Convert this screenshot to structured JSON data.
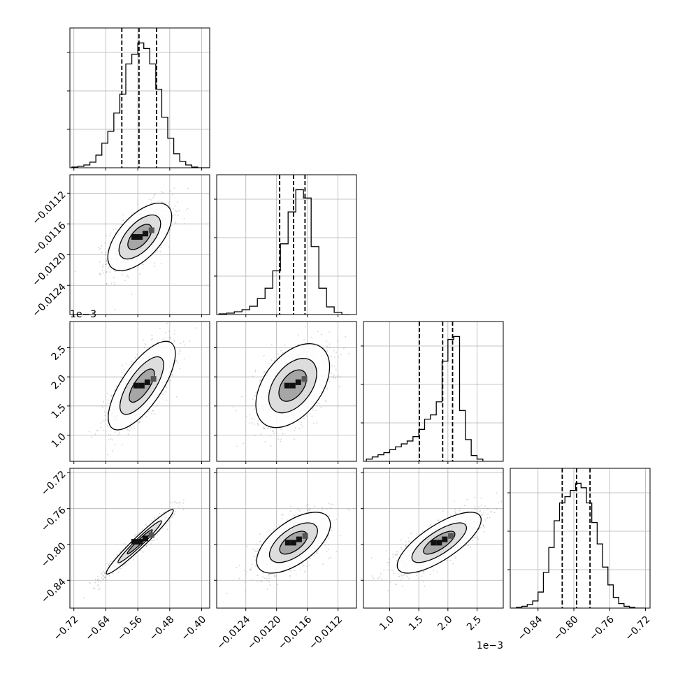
{
  "chart_data": {
    "type": "corner",
    "parameters": [
      "",
      "",
      "",
      ""
    ],
    "colors": {
      "line": "#000000",
      "grid": "#b0b0b0",
      "scatter": "#808080"
    },
    "grid": true,
    "offsets": {
      "p2": "1e−3"
    },
    "axes": {
      "p0": {
        "range": [
          -0.73,
          -0.38
        ],
        "ticks": [
          -0.72,
          -0.64,
          -0.56,
          -0.48,
          -0.4
        ],
        "tick_labels": [
          "−0.72",
          "−0.64",
          "−0.56",
          "−0.48",
          "−0.40"
        ]
      },
      "p1": {
        "range": [
          -0.01278,
          -0.01096
        ],
        "ticks": [
          -0.0124,
          -0.012,
          -0.0116,
          -0.0112
        ],
        "tick_labels": [
          "−0.0124",
          "−0.0120",
          "−0.0116",
          "−0.0112"
        ]
      },
      "p2": {
        "range": [
          0.00055,
          0.00295
        ],
        "ticks": [
          0.001,
          0.0015,
          0.002,
          0.0025
        ],
        "tick_labels": [
          "1.0",
          "1.5",
          "2.0",
          "2.5"
        ]
      },
      "p3": {
        "range": [
          -0.871,
          -0.715
        ],
        "ticks": [
          -0.84,
          -0.8,
          -0.76,
          -0.72
        ],
        "tick_labels": [
          "−0.84",
          "−0.80",
          "−0.76",
          "−0.72"
        ]
      }
    },
    "histograms": [
      {
        "param": "p0",
        "bins": [
          -0.725,
          -0.71,
          -0.695,
          -0.68,
          -0.665,
          -0.65,
          -0.635,
          -0.62,
          -0.605,
          -0.59,
          -0.575,
          -0.56,
          -0.545,
          -0.53,
          -0.515,
          -0.5,
          -0.485,
          -0.47,
          -0.455,
          -0.44,
          -0.425,
          -0.41,
          -0.395,
          -0.38
        ],
        "counts": [
          1,
          2,
          4,
          8,
          18,
          35,
          52,
          78,
          105,
          148,
          162,
          178,
          170,
          148,
          112,
          72,
          42,
          20,
          9,
          4,
          1,
          0,
          0
        ],
        "quantiles": [
          -0.6,
          -0.557,
          -0.513
        ]
      },
      {
        "param": "p1",
        "bins": [
          -0.01275,
          -0.01265,
          -0.01255,
          -0.01245,
          -0.01235,
          -0.01225,
          -0.01215,
          -0.01205,
          -0.01195,
          -0.01185,
          -0.01175,
          -0.01165,
          -0.01155,
          -0.01145,
          -0.01135,
          -0.01125,
          -0.01115,
          -0.01105
        ],
        "counts": [
          1,
          2,
          4,
          7,
          12,
          23,
          38,
          63,
          102,
          148,
          180,
          168,
          98,
          38,
          11,
          3,
          0
        ],
        "quantiles": [
          -0.01196,
          -0.01178,
          -0.01163
        ]
      },
      {
        "param": "p2",
        "bins": [
          0.0006,
          0.0007,
          0.0008,
          0.0009,
          0.001,
          0.0011,
          0.0012,
          0.0013,
          0.0014,
          0.0015,
          0.0016,
          0.0017,
          0.0018,
          0.0019,
          0.002,
          0.0021,
          0.0022,
          0.0023,
          0.0024,
          0.0025,
          0.0026
        ],
        "counts": [
          3,
          6,
          9,
          12,
          16,
          20,
          24,
          28,
          34,
          44,
          58,
          64,
          82,
          138,
          168,
          172,
          70,
          30,
          8,
          3
        ],
        "quantiles": [
          0.00151,
          0.00191,
          0.00208
        ]
      },
      {
        "param": "p3",
        "bins": [
          -0.87,
          -0.864,
          -0.858,
          -0.852,
          -0.846,
          -0.84,
          -0.834,
          -0.828,
          -0.822,
          -0.816,
          -0.81,
          -0.804,
          -0.798,
          -0.792,
          -0.786,
          -0.78,
          -0.774,
          -0.768,
          -0.762,
          -0.756,
          -0.75,
          -0.744,
          -0.738,
          -0.732,
          -0.726,
          -0.72
        ],
        "counts": [
          0,
          1,
          2,
          4,
          8,
          18,
          40,
          68,
          98,
          118,
          125,
          132,
          140,
          135,
          118,
          96,
          72,
          46,
          26,
          12,
          5,
          2,
          1,
          0,
          0
        ],
        "quantiles": [
          -0.813,
          -0.797,
          -0.782
        ]
      }
    ],
    "scatter_panels": [
      {
        "x": "p0",
        "y": "p1",
        "mean": [
          -0.555,
          -0.01177
        ],
        "std": [
          0.04,
          0.00022
        ],
        "corr": 0.6
      },
      {
        "x": "p0",
        "y": "p2",
        "mean": [
          -0.55,
          0.00185
        ],
        "std": [
          0.042,
          0.00038
        ],
        "corr": 0.72
      },
      {
        "x": "p1",
        "y": "p2",
        "mean": [
          -0.01179,
          0.00185
        ],
        "std": [
          0.00024,
          0.00036
        ],
        "corr": 0.45
      },
      {
        "x": "p0",
        "y": "p3",
        "mean": [
          -0.555,
          -0.797
        ],
        "std": [
          0.042,
          0.018
        ],
        "corr": 0.97
      },
      {
        "x": "p1",
        "y": "p3",
        "mean": [
          -0.01178,
          -0.798
        ],
        "std": [
          0.00024,
          0.017
        ],
        "corr": 0.6
      },
      {
        "x": "p2",
        "y": "p3",
        "mean": [
          0.00185,
          -0.798
        ],
        "std": [
          0.00036,
          0.017
        ],
        "corr": 0.75
      }
    ]
  }
}
